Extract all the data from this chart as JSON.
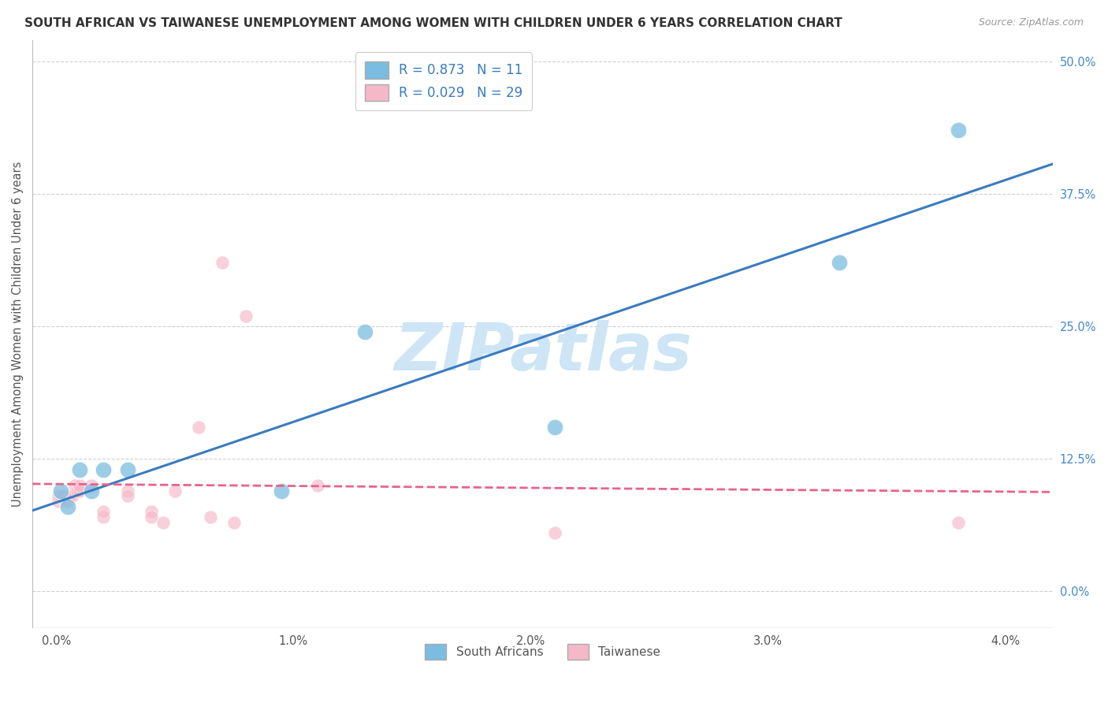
{
  "title": "SOUTH AFRICAN VS TAIWANESE UNEMPLOYMENT AMONG WOMEN WITH CHILDREN UNDER 6 YEARS CORRELATION CHART",
  "source": "Source: ZipAtlas.com",
  "ylabel": "Unemployment Among Women with Children Under 6 years",
  "xlabel_ticks": [
    "0.0%",
    "1.0%",
    "2.0%",
    "3.0%",
    "4.0%"
  ],
  "xlabel_vals": [
    0.0,
    0.01,
    0.02,
    0.03,
    0.04
  ],
  "ylabel_ticks": [
    "0.0%",
    "12.5%",
    "25.0%",
    "37.5%",
    "50.0%"
  ],
  "ylabel_vals": [
    0.0,
    0.125,
    0.25,
    0.375,
    0.5
  ],
  "xlim": [
    -0.001,
    0.042
  ],
  "ylim": [
    -0.035,
    0.52
  ],
  "watermark": "ZIPatlas",
  "sa_x": [
    0.0002,
    0.0005,
    0.001,
    0.0015,
    0.002,
    0.003,
    0.0095,
    0.013,
    0.021,
    0.033,
    0.038
  ],
  "sa_y": [
    0.095,
    0.08,
    0.115,
    0.095,
    0.115,
    0.115,
    0.095,
    0.245,
    0.155,
    0.31,
    0.435
  ],
  "tw_x": [
    0.0001,
    0.0001,
    0.0002,
    0.0003,
    0.0004,
    0.0005,
    0.0006,
    0.0007,
    0.0008,
    0.0009,
    0.001,
    0.001,
    0.0015,
    0.002,
    0.002,
    0.003,
    0.003,
    0.004,
    0.004,
    0.0045,
    0.005,
    0.006,
    0.0065,
    0.007,
    0.0075,
    0.008,
    0.011,
    0.021,
    0.038
  ],
  "tw_y": [
    0.085,
    0.09,
    0.09,
    0.09,
    0.085,
    0.085,
    0.09,
    0.09,
    0.1,
    0.095,
    0.095,
    0.1,
    0.1,
    0.07,
    0.075,
    0.095,
    0.09,
    0.075,
    0.07,
    0.065,
    0.095,
    0.155,
    0.07,
    0.31,
    0.065,
    0.26,
    0.1,
    0.055,
    0.065
  ],
  "sa_R": 0.873,
  "sa_N": 11,
  "tw_R": 0.029,
  "tw_N": 29,
  "sa_color": "#7bbde0",
  "tw_color": "#f5b8c8",
  "sa_line_color": "#3a7bbf",
  "tw_line_color": "#e8638a",
  "legend_color": "#3a7bbf",
  "title_color": "#333333",
  "source_color": "#999999",
  "grid_color": "#d0d0d0",
  "watermark_color": "#cde5f5",
  "right_label_color": "#4488cc",
  "background_color": "#ffffff"
}
